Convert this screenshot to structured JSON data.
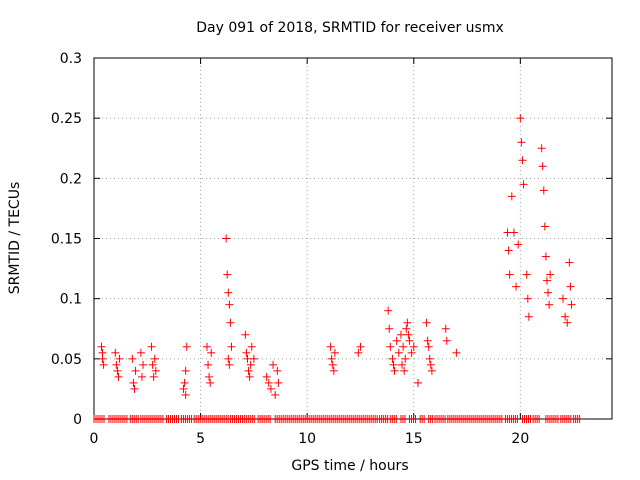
{
  "chart_data": {
    "type": "scatter",
    "title": "Day 091 of 2018, SRMTID for receiver usmx",
    "xlabel": "GPS time / hours",
    "ylabel": "SRMTID / TECUs",
    "xlim": [
      0,
      24.3
    ],
    "ylim": [
      0,
      0.3
    ],
    "x_ticks": [
      0,
      5,
      10,
      15,
      20
    ],
    "x_tick_labels": [
      "0",
      "5",
      "10",
      "15",
      "20"
    ],
    "y_ticks": [
      0,
      0.05,
      0.1,
      0.15,
      0.2,
      0.25,
      0.3
    ],
    "y_tick_labels": [
      "0",
      "0.05",
      "0.1",
      "0.15",
      "0.2",
      "0.25",
      "0.3"
    ],
    "grid": true,
    "marker": "+",
    "series": [
      {
        "name": "SRMTID",
        "color": "#ff0000",
        "x": [
          0.35,
          0.4,
          0.45,
          0.4,
          1.0,
          1.05,
          1.1,
          1.15,
          1.2,
          1.8,
          1.85,
          1.9,
          1.95,
          2.2,
          2.25,
          2.3,
          2.7,
          2.75,
          2.8,
          2.85,
          2.9,
          4.2,
          4.25,
          4.3,
          4.35,
          4.3,
          5.3,
          5.35,
          5.4,
          5.45,
          5.5,
          6.2,
          6.25,
          6.3,
          6.35,
          6.4,
          6.3,
          6.35,
          6.45,
          7.1,
          7.15,
          7.2,
          7.25,
          7.3,
          7.35,
          7.4,
          7.5,
          8.1,
          8.2,
          8.3,
          8.4,
          8.5,
          8.6,
          8.65,
          11.1,
          11.15,
          11.2,
          11.25,
          11.3,
          12.4,
          12.5,
          13.8,
          13.85,
          13.9,
          14.0,
          14.05,
          14.1,
          14.2,
          14.3,
          14.4,
          14.5,
          14.6,
          14.7,
          14.8,
          14.9,
          15.0,
          14.45,
          14.55,
          14.65,
          14.75,
          15.6,
          15.65,
          15.7,
          15.75,
          15.8,
          15.85,
          15.2,
          16.5,
          16.55,
          17.0,
          19.4,
          19.45,
          19.5,
          19.6,
          19.7,
          19.8,
          19.9,
          20.0,
          20.05,
          20.1,
          20.15,
          20.3,
          20.35,
          20.4,
          21.0,
          21.05,
          21.1,
          21.15,
          21.2,
          21.25,
          21.3,
          21.35,
          21.4,
          22.0,
          22.1,
          22.2,
          22.3,
          22.35,
          22.4
        ],
        "y": [
          0.06,
          0.05,
          0.045,
          0.055,
          0.055,
          0.045,
          0.04,
          0.035,
          0.05,
          0.05,
          0.03,
          0.025,
          0.04,
          0.055,
          0.035,
          0.045,
          0.06,
          0.045,
          0.035,
          0.05,
          0.04,
          0.025,
          0.03,
          0.02,
          0.06,
          0.04,
          0.06,
          0.045,
          0.035,
          0.03,
          0.055,
          0.15,
          0.12,
          0.105,
          0.095,
          0.08,
          0.05,
          0.045,
          0.06,
          0.07,
          0.055,
          0.05,
          0.04,
          0.035,
          0.045,
          0.06,
          0.05,
          0.035,
          0.03,
          0.025,
          0.045,
          0.02,
          0.04,
          0.03,
          0.06,
          0.05,
          0.045,
          0.04,
          0.055,
          0.055,
          0.06,
          0.09,
          0.075,
          0.06,
          0.05,
          0.045,
          0.04,
          0.065,
          0.055,
          0.07,
          0.06,
          0.05,
          0.08,
          0.065,
          0.055,
          0.06,
          0.045,
          0.04,
          0.075,
          0.07,
          0.08,
          0.065,
          0.06,
          0.05,
          0.045,
          0.04,
          0.03,
          0.075,
          0.065,
          0.055,
          0.155,
          0.14,
          0.12,
          0.185,
          0.155,
          0.11,
          0.145,
          0.25,
          0.23,
          0.215,
          0.195,
          0.12,
          0.1,
          0.085,
          0.225,
          0.21,
          0.19,
          0.16,
          0.135,
          0.115,
          0.105,
          0.095,
          0.12,
          0.1,
          0.085,
          0.08,
          0.13,
          0.11,
          0.095
        ],
        "baseline_spans_hours": [
          [
            0.0,
            0.5
          ],
          [
            0.7,
            1.6
          ],
          [
            1.7,
            2.1
          ],
          [
            2.2,
            3.3
          ],
          [
            3.4,
            4.0
          ],
          [
            4.1,
            4.6
          ],
          [
            4.7,
            6.3
          ],
          [
            6.4,
            7.0
          ],
          [
            7.05,
            7.6
          ],
          [
            7.7,
            8.3
          ],
          [
            8.5,
            13.3
          ],
          [
            13.4,
            13.8
          ],
          [
            13.9,
            14.2
          ],
          [
            14.4,
            14.6
          ],
          [
            14.8,
            15.1
          ],
          [
            15.3,
            15.5
          ],
          [
            15.7,
            15.9
          ],
          [
            16.0,
            16.5
          ],
          [
            16.6,
            19.2
          ],
          [
            19.3,
            19.9
          ],
          [
            20.1,
            20.5
          ],
          [
            20.6,
            20.9
          ],
          [
            21.2,
            21.8
          ],
          [
            21.9,
            22.4
          ],
          [
            22.5,
            22.8
          ]
        ]
      }
    ]
  }
}
